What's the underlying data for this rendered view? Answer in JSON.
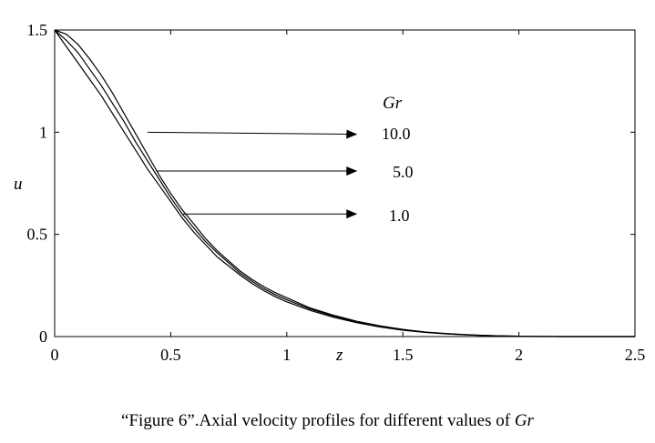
{
  "chart_data": {
    "type": "line",
    "xlabel": "z",
    "ylabel": "u",
    "xlim": [
      0,
      2.5
    ],
    "ylim": [
      0,
      1.5
    ],
    "xticks": [
      0,
      0.5,
      1,
      1.5,
      2,
      2.5
    ],
    "xtick_labels": [
      "0",
      "0.5",
      "1",
      "1.5",
      "2",
      "2.5"
    ],
    "yticks": [
      0,
      0.5,
      1,
      1.5
    ],
    "ytick_labels": [
      "0",
      "0.5",
      "1",
      "1.5"
    ],
    "grid": false,
    "legend_title": "Gr",
    "series": [
      {
        "name": "10.0",
        "x": [
          0,
          0.05,
          0.1,
          0.15,
          0.2,
          0.25,
          0.3,
          0.35,
          0.4,
          0.45,
          0.5,
          0.55,
          0.6,
          0.65,
          0.7,
          0.75,
          0.8,
          0.85,
          0.9,
          0.95,
          1.0,
          1.1,
          1.2,
          1.3,
          1.4,
          1.5,
          1.6,
          1.7,
          1.8,
          1.9,
          2.0,
          2.1,
          2.2,
          2.3,
          2.4,
          2.5
        ],
        "y": [
          1.5,
          1.48,
          1.43,
          1.36,
          1.28,
          1.19,
          1.09,
          0.99,
          0.89,
          0.79,
          0.7,
          0.62,
          0.55,
          0.48,
          0.42,
          0.37,
          0.32,
          0.28,
          0.245,
          0.215,
          0.19,
          0.14,
          0.105,
          0.075,
          0.053,
          0.035,
          0.022,
          0.014,
          0.008,
          0.004,
          0.002,
          0.001,
          0,
          0,
          0,
          0
        ]
      },
      {
        "name": "5.0",
        "x": [
          0,
          0.05,
          0.1,
          0.15,
          0.2,
          0.25,
          0.3,
          0.35,
          0.4,
          0.45,
          0.5,
          0.55,
          0.6,
          0.65,
          0.7,
          0.75,
          0.8,
          0.85,
          0.9,
          0.95,
          1.0,
          1.1,
          1.2,
          1.3,
          1.4,
          1.5,
          1.6,
          1.7,
          1.8,
          1.9,
          2.0,
          2.1,
          2.2,
          2.3,
          2.4,
          2.5
        ],
        "y": [
          1.5,
          1.45,
          1.39,
          1.31,
          1.23,
          1.14,
          1.05,
          0.95,
          0.86,
          0.77,
          0.68,
          0.6,
          0.53,
          0.465,
          0.41,
          0.36,
          0.31,
          0.27,
          0.235,
          0.205,
          0.18,
          0.135,
          0.1,
          0.072,
          0.05,
          0.033,
          0.021,
          0.013,
          0.007,
          0.004,
          0.002,
          0.001,
          0,
          0,
          0,
          0
        ]
      },
      {
        "name": "1.0",
        "x": [
          0,
          0.05,
          0.1,
          0.15,
          0.2,
          0.25,
          0.3,
          0.35,
          0.4,
          0.45,
          0.5,
          0.55,
          0.6,
          0.65,
          0.7,
          0.75,
          0.8,
          0.85,
          0.9,
          0.95,
          1.0,
          1.1,
          1.2,
          1.3,
          1.4,
          1.5,
          1.6,
          1.7,
          1.8,
          1.9,
          2.0,
          2.1,
          2.2,
          2.3,
          2.4,
          2.5
        ],
        "y": [
          1.5,
          1.42,
          1.34,
          1.26,
          1.18,
          1.09,
          1.0,
          0.91,
          0.82,
          0.74,
          0.66,
          0.58,
          0.51,
          0.45,
          0.39,
          0.345,
          0.3,
          0.26,
          0.225,
          0.195,
          0.17,
          0.128,
          0.095,
          0.068,
          0.047,
          0.031,
          0.02,
          0.012,
          0.007,
          0.003,
          0.001,
          0,
          0,
          0,
          0,
          0
        ]
      }
    ],
    "annotations": [
      {
        "label": "10.0",
        "arrow_from": [
          0.4,
          1.0
        ],
        "arrow_to": [
          1.3,
          0.99
        ]
      },
      {
        "label": "5.0",
        "arrow_from": [
          0.44,
          0.81
        ],
        "arrow_to": [
          1.3,
          0.81
        ]
      },
      {
        "label": "1.0",
        "arrow_from": [
          0.55,
          0.6
        ],
        "arrow_to": [
          1.3,
          0.6
        ]
      }
    ]
  },
  "caption": {
    "text": "“Figure 6”.Axial velocity profiles for different values of ",
    "italic": "Gr"
  }
}
